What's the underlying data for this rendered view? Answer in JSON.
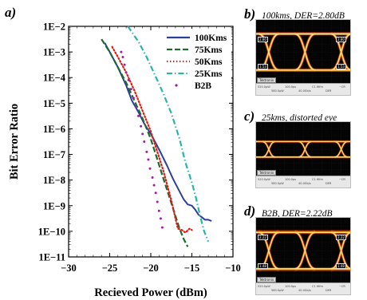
{
  "chart_data": {
    "type": "line",
    "panel_label": "a)",
    "xlabel": "Recieved Power (dBm)",
    "ylabel": "Bit Error Ratio",
    "xlim": [
      -30,
      -10
    ],
    "ylim_log10": [
      -11,
      -2
    ],
    "y_scale": "log",
    "x_ticks": [
      -30,
      -25,
      -20,
      -15,
      -10
    ],
    "x_tick_labels": [
      "−30",
      "−25",
      "−20",
      "−15",
      "−10"
    ],
    "y_ticks_log10": [
      -2,
      -3,
      -4,
      -5,
      -6,
      -7,
      -8,
      -9,
      -10,
      -11
    ],
    "y_tick_labels": [
      "1E−2",
      "1E−3",
      "1E−4",
      "1E−5",
      "1E−6",
      "1E−7",
      "1E−8",
      "1E−9",
      "1E−10",
      "1E−11"
    ],
    "grid": false,
    "legend_position": "top-right",
    "series": [
      {
        "name": "100Kms",
        "style": "solid",
        "color": "#2b3f9e",
        "x": [
          -25.6,
          -25,
          -24,
          -23,
          -22.3,
          -21.5,
          -20.8,
          -20,
          -19,
          -18,
          -17.3,
          -16.5,
          -16,
          -15.5,
          -15,
          -14.6,
          -14.2,
          -13.8,
          -13.4,
          -13,
          -12.6
        ],
        "log10_y": [
          -2.65,
          -3.0,
          -3.6,
          -4.3,
          -4.9,
          -5.35,
          -5.8,
          -6.2,
          -6.8,
          -7.45,
          -7.95,
          -8.45,
          -8.75,
          -8.95,
          -9.0,
          -9.15,
          -9.35,
          -9.45,
          -9.55,
          -9.55,
          -9.6
        ]
      },
      {
        "name": "75Kms",
        "style": "dashed",
        "color": "#1c6b2c",
        "x": [
          -26,
          -25,
          -24,
          -23,
          -22,
          -21,
          -20,
          -19.5,
          -19,
          -18.5,
          -18,
          -17.5,
          -17,
          -16.5,
          -16,
          -15.5
        ],
        "log10_y": [
          -2.5,
          -3.0,
          -3.6,
          -4.2,
          -4.9,
          -5.6,
          -6.4,
          -6.9,
          -7.4,
          -7.9,
          -8.4,
          -8.9,
          -9.4,
          -9.9,
          -10.3,
          -10.6
        ]
      },
      {
        "name": "50Kms",
        "style": "dotted",
        "color": "#e21c13",
        "x": [
          -24.7,
          -24,
          -23,
          -22,
          -21,
          -20,
          -19.3,
          -18.5,
          -18,
          -17.5,
          -17,
          -16.7,
          -16.2,
          -15.8,
          -15.3,
          -15
        ],
        "log10_y": [
          -2.8,
          -3.2,
          -3.8,
          -4.5,
          -5.3,
          -6.1,
          -6.8,
          -7.6,
          -8.2,
          -8.8,
          -9.5,
          -9.9,
          -9.95,
          -10.05,
          -9.9,
          -9.95
        ]
      },
      {
        "name": "25Kms",
        "style": "dashdot",
        "color": "#2ab3a9",
        "x": [
          -22.8,
          -21.5,
          -20.5,
          -19.5,
          -18.5,
          -17.5,
          -16.5,
          -15.8,
          -15,
          -14.5,
          -14,
          -13.5,
          -13
        ],
        "log10_y": [
          -2.0,
          -2.6,
          -3.2,
          -3.9,
          -4.6,
          -5.4,
          -6.4,
          -7.3,
          -8.1,
          -8.7,
          -9.4,
          -10.0,
          -10.4
        ]
      },
      {
        "name": "B2B",
        "style": "markers",
        "color": "#a01fa0",
        "x": [
          -23.6,
          -23.4,
          -23.2,
          -23.0,
          -22.7,
          -22.4,
          -22.1,
          -21.8,
          -21.5,
          -21.2,
          -21.0,
          -20.8,
          -20.5,
          -20.3,
          -20.1,
          -19.8,
          -19.6,
          -19.4,
          -19.2,
          -19.0,
          -18.8,
          -18.6
        ],
        "log10_y": [
          -3.0,
          -3.2,
          -3.5,
          -3.8,
          -4.1,
          -4.45,
          -4.8,
          -5.15,
          -5.5,
          -5.9,
          -6.2,
          -6.5,
          -6.9,
          -7.2,
          -7.55,
          -7.9,
          -8.2,
          -8.5,
          -8.85,
          -9.2,
          -9.5,
          -9.85
        ]
      }
    ]
  },
  "eye_panels": [
    {
      "label": "b)",
      "caption": "100kms, DER=2.80dB",
      "type": "eye",
      "thickness": 1.1,
      "noise": 1.2,
      "measurements": [
        "2.80",
        "1.53",
        "2.80",
        "1.53"
      ]
    },
    {
      "label": "c)",
      "caption": "25kms, distorted eye",
      "type": "distorted",
      "thickness": 0.8,
      "noise": 0.8,
      "measurements": []
    },
    {
      "label": "d)",
      "caption": "B2B, DER=2.22dB",
      "type": "eye",
      "thickness": 1.0,
      "noise": 0.9,
      "measurements": [
        "2.22",
        "1.48",
        "2.22",
        "1.48"
      ]
    }
  ],
  "scope": {
    "logo_text": "Tektronix",
    "footer_cells": [
      "520.0µW",
      "580.0µW",
      "100.0ps",
      "40.0Gb/s",
      "C1 Wfm",
      "DER",
      "−CR"
    ],
    "colors": {
      "hot": "#ffe08a",
      "warm": "#f0a020",
      "cool": "#b03010",
      "accent": "#2e7dff",
      "background": "#040404"
    }
  }
}
